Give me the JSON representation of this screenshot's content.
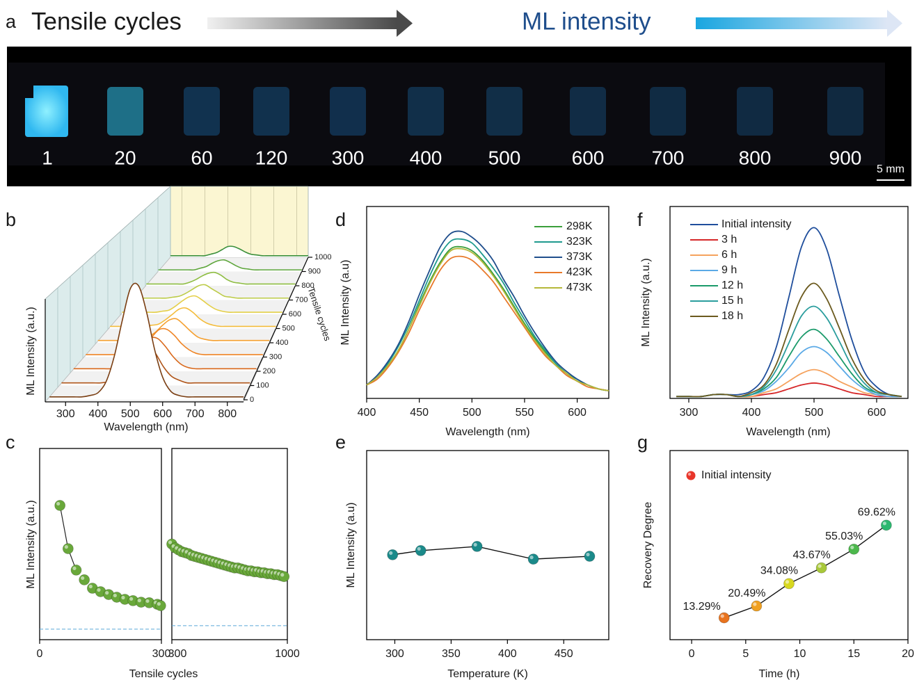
{
  "photo": {
    "panel": "a",
    "title": "Tensile cycles",
    "arrow_label": "ML intensity",
    "labels": [
      1,
      20,
      60,
      120,
      300,
      400,
      500,
      600,
      700,
      800,
      900
    ],
    "scale_bar": "5 mm"
  },
  "chart_data": [
    {
      "type": "waterfall",
      "panel": "b",
      "xlabel": "Wavelength (nm)",
      "ylabel": "ML Intensity (a.u.)",
      "zlabel": "Tensile cycles",
      "xlim": [
        250,
        850
      ],
      "xticks": [
        300,
        400,
        500,
        600,
        700,
        800
      ],
      "ylim": [
        0,
        100
      ],
      "zlim": [
        0,
        1000
      ],
      "zticks": [
        0,
        100,
        200,
        300,
        400,
        500,
        600,
        700,
        800,
        900,
        1000
      ],
      "x": [
        250,
        275,
        300,
        325,
        350,
        375,
        400,
        425,
        450,
        475,
        500,
        525,
        550,
        575,
        600,
        625,
        650,
        675,
        700,
        725,
        750,
        775,
        800,
        825,
        850
      ],
      "series": [
        {
          "z": 1,
          "color": "#7a3e12",
          "values": [
            2,
            2,
            2,
            2,
            2,
            3,
            5,
            13,
            31,
            57,
            80,
            82,
            63,
            36,
            16,
            6,
            3,
            2,
            2,
            2,
            2,
            2,
            2,
            2,
            2
          ]
        },
        {
          "z": 100,
          "color": "#b0561a",
          "values": [
            2,
            2,
            2,
            2,
            2,
            2,
            3,
            6,
            13,
            22,
            30,
            31,
            24,
            14,
            7,
            4,
            2,
            2,
            2,
            2,
            2,
            2,
            2,
            2,
            2
          ]
        },
        {
          "z": 200,
          "color": "#d9691c",
          "values": [
            2,
            2,
            2,
            2,
            2,
            2,
            3,
            5,
            11,
            19,
            26,
            26,
            20,
            12,
            6,
            3,
            2,
            2,
            2,
            2,
            2,
            2,
            2,
            2,
            2
          ]
        },
        {
          "z": 300,
          "color": "#ef8424",
          "values": [
            2,
            2,
            2,
            2,
            2,
            2,
            3,
            5,
            10,
            17,
            23,
            23,
            18,
            11,
            6,
            3,
            2,
            2,
            2,
            2,
            2,
            2,
            2,
            2,
            2
          ]
        },
        {
          "z": 400,
          "color": "#f5a030",
          "values": [
            2,
            2,
            2,
            2,
            2,
            2,
            3,
            5,
            9,
            15,
            20,
            21,
            16,
            10,
            5,
            3,
            2,
            2,
            2,
            2,
            2,
            2,
            2,
            2,
            2
          ]
        },
        {
          "z": 500,
          "color": "#f4bc3a",
          "values": [
            2,
            2,
            2,
            2,
            2,
            2,
            3,
            4,
            8,
            13,
            18,
            19,
            15,
            9,
            5,
            3,
            2,
            2,
            2,
            2,
            2,
            2,
            2,
            2,
            2
          ]
        },
        {
          "z": 600,
          "color": "#e4cf48",
          "values": [
            2,
            2,
            2,
            2,
            2,
            2,
            3,
            4,
            8,
            13,
            17,
            18,
            14,
            9,
            5,
            3,
            2,
            2,
            2,
            2,
            2,
            2,
            2,
            2,
            2
          ]
        },
        {
          "z": 700,
          "color": "#bccb46",
          "values": [
            2,
            2,
            2,
            2,
            2,
            2,
            3,
            4,
            7,
            11,
            15,
            16,
            12,
            8,
            4,
            3,
            2,
            2,
            2,
            2,
            2,
            2,
            2,
            2,
            2
          ]
        },
        {
          "z": 800,
          "color": "#8ebd42",
          "values": [
            2,
            2,
            2,
            2,
            2,
            2,
            2,
            4,
            7,
            11,
            14,
            15,
            12,
            7,
            4,
            3,
            2,
            2,
            2,
            2,
            2,
            2,
            2,
            2,
            2
          ]
        },
        {
          "z": 900,
          "color": "#5ea63c",
          "values": [
            2,
            2,
            2,
            2,
            2,
            2,
            2,
            4,
            6,
            10,
            13,
            14,
            11,
            7,
            4,
            3,
            2,
            2,
            2,
            2,
            2,
            2,
            2,
            2,
            2
          ]
        },
        {
          "z": 1000,
          "color": "#3a8f3a",
          "values": [
            2,
            2,
            2,
            2,
            2,
            2,
            2,
            4,
            6,
            10,
            14,
            14,
            11,
            7,
            4,
            3,
            2,
            2,
            2,
            2,
            2,
            2,
            2,
            2,
            2
          ]
        }
      ]
    },
    {
      "type": "scatter",
      "panel": "c",
      "xlabel": "Tensile cycles",
      "ylabel": "ML Intensity (a.u.)",
      "color": "#69a83a",
      "baseline_color": "#5aa7d6",
      "ylim": [
        0,
        100
      ],
      "axes": [
        {
          "xlim": [
            0,
            300
          ],
          "xticks": [
            0,
            300
          ],
          "baseline": 5.5,
          "x": [
            50,
            70,
            90,
            110,
            130,
            150,
            170,
            190,
            210,
            230,
            250,
            270,
            290,
            298
          ],
          "values": [
            70.2,
            47.6,
            36.4,
            31.3,
            26.9,
            25.1,
            23.6,
            22.2,
            21.1,
            20.4,
            19.6,
            19.3,
            18.5,
            17.8
          ]
        },
        {
          "xlim": [
            300,
            1000
          ],
          "xticks": [
            300,
            1000
          ],
          "baseline": 7.3,
          "x": [
            300,
            320,
            340,
            360,
            380,
            400,
            420,
            440,
            460,
            480,
            500,
            520,
            540,
            560,
            580,
            600,
            620,
            640,
            660,
            680,
            700,
            720,
            740,
            760,
            780,
            800,
            820,
            840,
            860,
            880,
            900,
            920,
            940,
            960,
            980
          ],
          "values": [
            50,
            48,
            47,
            46,
            45.5,
            45,
            44,
            43.5,
            43,
            42.5,
            42,
            41.5,
            41,
            40.5,
            40,
            39.5,
            39,
            38.5,
            38,
            37.5,
            37.5,
            37,
            36.5,
            36,
            36,
            35.5,
            35.5,
            35,
            35,
            34.5,
            34.5,
            34,
            34,
            33.5,
            33
          ]
        }
      ]
    },
    {
      "type": "line",
      "panel": "d",
      "xlabel": "Wavelength (nm)",
      "ylabel": "ML Intensity (a.u)",
      "xlim": [
        400,
        630
      ],
      "xticks": [
        400,
        450,
        500,
        550,
        600
      ],
      "ylim": [
        0,
        100
      ],
      "x": [
        400,
        410,
        420,
        430,
        440,
        450,
        460,
        470,
        480,
        490,
        500,
        510,
        520,
        530,
        540,
        550,
        560,
        570,
        580,
        590,
        600,
        610,
        620,
        630
      ],
      "series": [
        {
          "name": "298K",
          "color": "#3a9e3a",
          "values": [
            7,
            11,
            17,
            25,
            36,
            49,
            61,
            71,
            78,
            79,
            77,
            72,
            65,
            57,
            48,
            39,
            31,
            24,
            18,
            13,
            9,
            7,
            5,
            4
          ]
        },
        {
          "name": "323K",
          "color": "#1e9a8e",
          "values": [
            7,
            11,
            18,
            27,
            38,
            51,
            64,
            75,
            82,
            83,
            81,
            75,
            68,
            60,
            50,
            41,
            32,
            25,
            18,
            13,
            10,
            7,
            5,
            4
          ]
        },
        {
          "name": "373K",
          "color": "#1f4e8c",
          "values": [
            7,
            12,
            19,
            28,
            40,
            54,
            67,
            79,
            86,
            87,
            84,
            79,
            72,
            62,
            53,
            43,
            34,
            26,
            19,
            14,
            10,
            7,
            5,
            4
          ]
        },
        {
          "name": "423K",
          "color": "#e8792a",
          "values": [
            7,
            10,
            16,
            24,
            34,
            46,
            57,
            67,
            73,
            74,
            72,
            67,
            61,
            53,
            45,
            37,
            29,
            22,
            17,
            12,
            9,
            6,
            5,
            4
          ]
        },
        {
          "name": "473K",
          "color": "#b5b83a",
          "values": [
            7,
            11,
            17,
            25,
            36,
            48,
            60,
            70,
            77,
            78,
            76,
            71,
            64,
            56,
            47,
            38,
            30,
            23,
            17,
            13,
            9,
            7,
            5,
            4
          ]
        }
      ]
    },
    {
      "type": "line",
      "panel": "e",
      "xlabel": "Temperature (K)",
      "ylabel": "ML Intensity (a.u)",
      "markers": true,
      "color": "#1b8a8a",
      "xlim": [
        275,
        490
      ],
      "xticks": [
        300,
        350,
        400,
        450
      ],
      "ylim": [
        0,
        100
      ],
      "x": [
        298,
        323,
        373,
        423,
        473
      ],
      "values": [
        44.9,
        47.1,
        49.3,
        42.6,
        44.1
      ]
    },
    {
      "type": "line",
      "panel": "f",
      "xlabel": "Wavelength (nm)",
      "ylabel": "ML Intensity (a.u.)",
      "xlim": [
        270,
        650
      ],
      "xticks": [
        300,
        400,
        500,
        600
      ],
      "ylim": [
        0,
        100
      ],
      "x": [
        280,
        300,
        320,
        340,
        360,
        380,
        400,
        420,
        440,
        460,
        480,
        500,
        520,
        540,
        560,
        580,
        600,
        620,
        640
      ],
      "series": [
        {
          "name": "Initial intensity",
          "color": "#1f4e9c",
          "values": [
            1,
            1,
            1,
            2,
            2,
            2,
            4,
            11,
            27,
            53,
            79,
            89,
            78,
            54,
            31,
            14,
            6,
            2,
            1
          ]
        },
        {
          "name": "3 h",
          "color": "#d62728",
          "values": [
            1,
            1,
            1,
            2,
            2,
            1,
            1,
            2,
            3,
            5,
            7,
            8,
            7,
            5,
            3,
            2,
            1,
            1,
            1
          ]
        },
        {
          "name": "6 h",
          "color": "#f5a25d",
          "values": [
            1,
            1,
            1,
            2,
            2,
            1,
            1,
            3,
            5,
            9,
            13,
            15,
            13,
            9,
            6,
            3,
            2,
            1,
            1
          ]
        },
        {
          "name": "9 h",
          "color": "#5aa9e6",
          "values": [
            1,
            1,
            1,
            2,
            2,
            1,
            2,
            4,
            9,
            16,
            24,
            27,
            24,
            17,
            10,
            5,
            2,
            1,
            1
          ]
        },
        {
          "name": "12 h",
          "color": "#1a9a6a",
          "values": [
            1,
            1,
            1,
            2,
            2,
            1,
            2,
            5,
            11,
            22,
            32,
            36,
            31,
            22,
            13,
            6,
            3,
            2,
            1
          ]
        },
        {
          "name": "15 h",
          "color": "#2a9d9d",
          "values": [
            1,
            1,
            1,
            2,
            2,
            1,
            2,
            6,
            15,
            29,
            43,
            48,
            42,
            30,
            17,
            8,
            3,
            2,
            1
          ]
        },
        {
          "name": "18 h",
          "color": "#6b5a1e",
          "values": [
            1,
            1,
            1,
            2,
            2,
            1,
            3,
            7,
            18,
            36,
            53,
            60,
            52,
            37,
            21,
            10,
            4,
            2,
            1
          ]
        }
      ]
    },
    {
      "type": "line",
      "panel": "g",
      "xlabel": "Time (h)",
      "ylabel": "Recovery Degree",
      "markers": true,
      "xlim": [
        -2,
        20
      ],
      "xticks": [
        0,
        5,
        10,
        15,
        20
      ],
      "ylim": [
        0,
        115
      ],
      "x": [
        3,
        6,
        9,
        12,
        15,
        18
      ],
      "values": [
        13.29,
        20.49,
        34.08,
        43.67,
        55.03,
        69.62
      ],
      "value_labels": [
        "13.29%",
        "20.49%",
        "34.08%",
        "43.67%",
        "55.03%",
        "69.62%"
      ],
      "colors": [
        "#e8731e",
        "#f0a020",
        "#d8d820",
        "#a8c83a",
        "#4cb84c",
        "#2db870"
      ],
      "legend": {
        "name": "Initial intensity",
        "color": "#e8352a"
      }
    }
  ]
}
